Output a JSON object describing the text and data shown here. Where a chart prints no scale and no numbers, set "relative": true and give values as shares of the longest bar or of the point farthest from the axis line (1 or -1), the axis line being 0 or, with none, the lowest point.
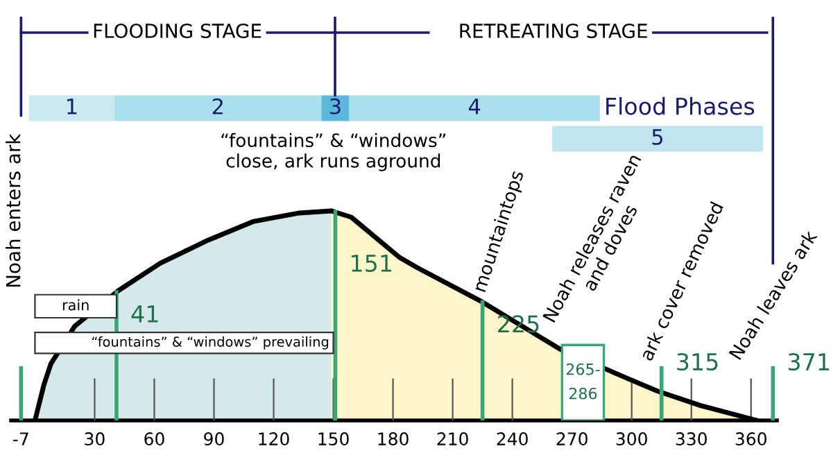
{
  "chart_data": [
    {
      "type": "area",
      "relative": true,
      "grid": "x",
      "annotations": [
        "Noah enters ark",
        "“fountains” & “windows”\nclose, ark runs aground",
        "mountaintops",
        "Noah releases raven\nand doves",
        "ark cover removed",
        "Noah leaves ark",
        "FLOODING STAGE",
        "RETREATING STAGE"
      ],
      "series": [
        {
          "color": "#d5e8ea",
          "x": [
            0,
            4.5,
            8,
            20,
            42,
            63,
            87,
            110,
            133,
            149
          ],
          "values": [
            0,
            0.17,
            0.27,
            0.45,
            0.62,
            0.75,
            0.86,
            0.95,
            0.99,
            1.0
          ]
        },
        {
          "color": "#fdf6cc",
          "x": [
            149,
            159,
            183,
            192,
            224,
            264,
            298,
            313,
            335,
            363
          ],
          "values": [
            1.0,
            0.97,
            0.78,
            0.73,
            0.57,
            0.34,
            0.2,
            0.14,
            0.07,
            0
          ]
        }
      ],
      "xlim": [
        -12,
        373
      ],
      "xticks": [
        -7,
        30,
        60,
        90,
        120,
        150,
        180,
        210,
        240,
        270,
        300,
        330,
        360
      ],
      "ref_lines": [
        {
          "axis": "x",
          "value": -7,
          "color": "#3aa676"
        },
        {
          "axis": "x",
          "value": 41,
          "label": "41",
          "color": "#3aa676"
        },
        {
          "axis": "x",
          "value": 151,
          "label": "151",
          "color": "#3aa676"
        },
        {
          "axis": "x",
          "value": 225,
          "label": "225",
          "color": "#3aa676"
        },
        {
          "axis": "x",
          "value": 315,
          "label": "315",
          "color": "#3aa676"
        },
        {
          "axis": "x",
          "value": 371,
          "label": "371",
          "color": "#3aa676"
        },
        {
          "axis": "x",
          "value": 371,
          "color": "#1a1a6e"
        }
      ],
      "bands": [
        {
          "axis": "x",
          "from": 0,
          "to": 41,
          "label": "rain",
          "color": "#ffffff"
        },
        {
          "axis": "x",
          "from": 0,
          "to": 150,
          "label": "“fountains” & “windows” prevailing",
          "color": "#ffffff"
        },
        {
          "axis": "x",
          "from": 265,
          "to": 286,
          "label": "265-\n286",
          "color": "#ffffff"
        }
      ]
    },
    {
      "type": "bar",
      "orientation": "horizontal",
      "categories": [
        null
      ],
      "xlim": [
        -12,
        373
      ],
      "tick_labels": false,
      "annotations": [
        "Flood Phases"
      ],
      "series": [
        {
          "name": "1",
          "color": "#c8eaf0",
          "values": [
            43
          ],
          "base": [
            -3
          ]
        },
        {
          "name": "2",
          "color": "#a9e0ec",
          "values": [
            104
          ],
          "base": [
            40
          ]
        },
        {
          "name": "3",
          "color": "#5bb7dc",
          "values": [
            14
          ],
          "base": [
            144
          ]
        },
        {
          "name": "4",
          "color": "#a9e0ec",
          "values": [
            126
          ],
          "base": [
            158
          ]
        }
      ]
    },
    {
      "type": "bar",
      "orientation": "horizontal",
      "categories": [
        null
      ],
      "xlim": [
        -12,
        373
      ],
      "tick_labels": false,
      "series": [
        {
          "name": "5",
          "color": "#bfe6ee",
          "values": [
            106
          ],
          "base": [
            260
          ]
        }
      ]
    }
  ]
}
